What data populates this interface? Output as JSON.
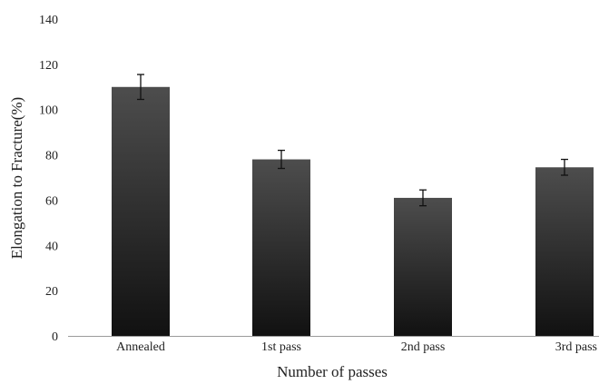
{
  "chart_data": {
    "type": "bar",
    "xlabel": "Number of passes",
    "ylabel": "Elongation to Fracture(%)",
    "categories": [
      "Annealed",
      "1st pass",
      "2nd pass",
      "3rd pass"
    ],
    "values": [
      110,
      78,
      61,
      74.5
    ],
    "errors": [
      5.5,
      4,
      3.5,
      3.5
    ],
    "ylim": [
      0,
      140
    ],
    "yticks": [
      "0",
      "20",
      "40",
      "60",
      "80",
      "100",
      "120",
      "140"
    ],
    "grid": false,
    "legend": "none",
    "bar_colors": {
      "top": "#4d4d4d",
      "bottom": "#111111"
    }
  }
}
